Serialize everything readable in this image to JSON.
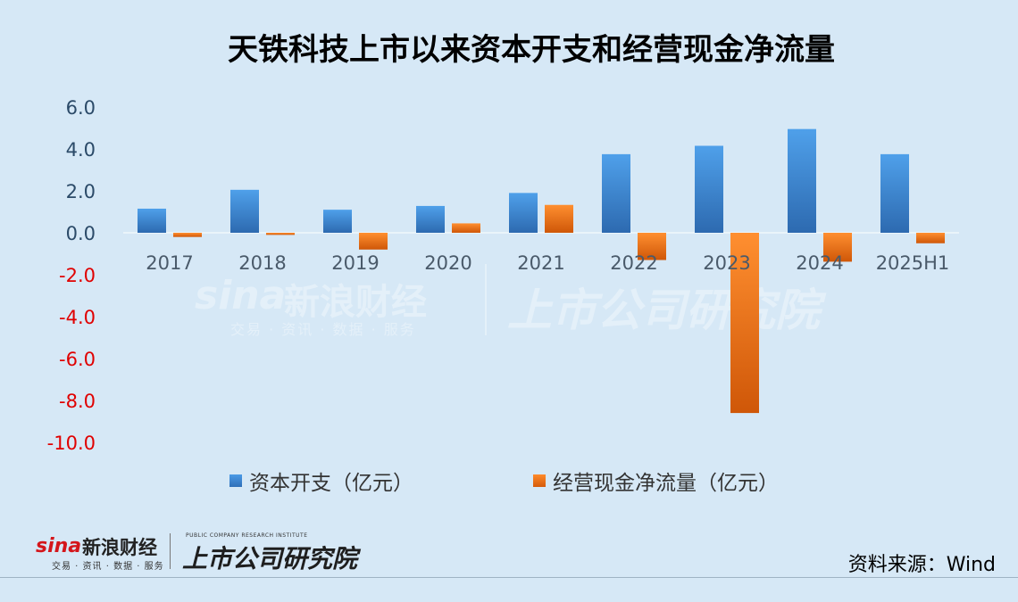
{
  "title": "天铁科技上市以来资本开支和经营现金净流量",
  "source": "资料来源：Wind",
  "watermark": {
    "brand": "sina",
    "brand_cn": "新浪财经",
    "sub": "交易 · 资讯 · 数据 · 服务",
    "institute": "上市公司研究院"
  },
  "logo": {
    "brand": "sina",
    "brand_cn": "新浪财经",
    "sub": "交易 · 资讯 · 数据 · 服务",
    "institute_en": "PUBLIC COMPANY RESEARCH INSTITUTE",
    "institute": "上市公司研究院"
  },
  "colors": {
    "capex": "#3b86d6",
    "ocf": "#f07b1e",
    "negative_tick": "#e00000",
    "positive_tick": "#2b4a68"
  },
  "chart_data": {
    "type": "bar",
    "categories": [
      "2017",
      "2018",
      "2019",
      "2020",
      "2021",
      "2022",
      "2023",
      "2024",
      "2025H1"
    ],
    "series": [
      {
        "name": "资本开支（亿元）",
        "values": [
          1.15,
          2.05,
          1.1,
          1.28,
          1.9,
          3.75,
          4.15,
          4.95,
          3.75
        ]
      },
      {
        "name": "经营现金净流量（亿元）",
        "values": [
          -0.2,
          -0.1,
          -0.8,
          0.45,
          1.33,
          -1.3,
          -8.6,
          -1.38,
          -0.5
        ]
      }
    ],
    "yticks": [
      "6.0",
      "4.0",
      "2.0",
      "0.0",
      "-2.0",
      "-4.0",
      "-6.0",
      "-8.0",
      "-10.0"
    ],
    "ylim": [
      -10,
      6
    ],
    "legend": "bottom",
    "grid": false
  }
}
